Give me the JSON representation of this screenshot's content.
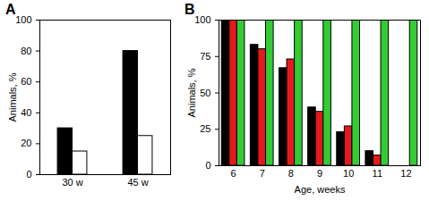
{
  "chart_data": [
    {
      "type": "bar",
      "title": "A",
      "ylabel": "Animals, %",
      "categories": [
        "30 w",
        "45 w"
      ],
      "series": [
        {
          "color": "#000000",
          "values": [
            30,
            80
          ]
        },
        {
          "color": "#ffffff",
          "values": [
            15,
            25
          ]
        }
      ],
      "ylim": [
        0,
        100
      ],
      "yticks": [
        0,
        20,
        40,
        60,
        80,
        100
      ]
    },
    {
      "type": "bar",
      "title": "B",
      "xlabel": "Age, weeks",
      "ylabel": "Animals, %",
      "categories": [
        6,
        7,
        8,
        9,
        10,
        11,
        12
      ],
      "series": [
        {
          "color": "#000000",
          "values": [
            100,
            83,
            67,
            40,
            23,
            10,
            0
          ]
        },
        {
          "color": "#e41a1c",
          "values": [
            100,
            80,
            73,
            37,
            27,
            7,
            0
          ]
        },
        {
          "color": "#33cc33",
          "values": [
            100,
            100,
            100,
            100,
            100,
            100,
            100
          ]
        }
      ],
      "ylim": [
        0,
        100
      ],
      "yticks": [
        0,
        25,
        50,
        75,
        100
      ]
    }
  ]
}
